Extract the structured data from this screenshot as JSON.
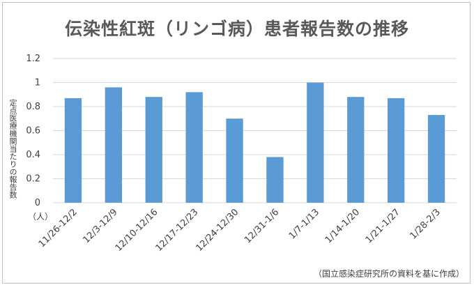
{
  "chart_data": {
    "type": "bar",
    "title": "伝染性紅斑（リンゴ病）患者報告数の推移",
    "ylabel": "定点医療機関当たりの報告数",
    "unit_label": "（人）",
    "source_note": "（国立感染症研究所の資料を基に作成）",
    "categories": [
      "11/26-12/2",
      "12/3-12/9",
      "12/10-12/16",
      "12/17-12/23",
      "12/24-12/30",
      "12/31-1/6",
      "1/7-1/13",
      "1/14-1/20",
      "1/21-1/27",
      "1/28-2/3"
    ],
    "values": [
      0.87,
      0.96,
      0.88,
      0.92,
      0.7,
      0.38,
      1.0,
      0.88,
      0.87,
      0.73
    ],
    "ylim": [
      0,
      1.2
    ],
    "yticks": [
      "0",
      "0.2",
      "0.4",
      "0.6",
      "0.8",
      "1",
      "1.2"
    ],
    "grid": true,
    "bar_color": "#5b9bd5"
  }
}
